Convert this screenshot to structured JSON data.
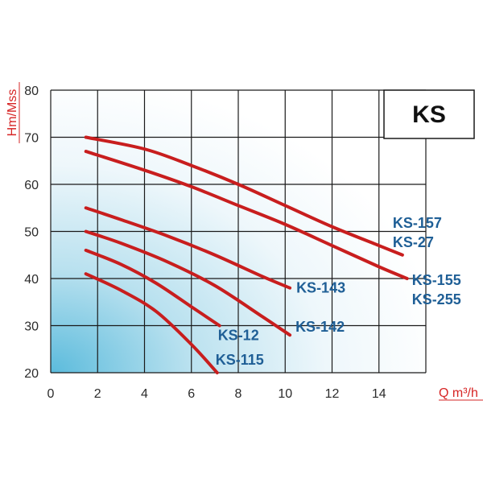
{
  "chart_data": {
    "type": "line",
    "title_box": "KS",
    "xlabel": "Q m³/h",
    "ylabel": "Hm/Mss",
    "xlim": [
      0,
      16
    ],
    "ylim": [
      20,
      80
    ],
    "xticks": [
      0,
      2,
      4,
      6,
      8,
      10,
      12,
      14
    ],
    "yticks": [
      20,
      30,
      40,
      50,
      60,
      70,
      80
    ],
    "grid": true,
    "series": [
      {
        "label": [
          "KS-157",
          "KS-27"
        ],
        "x": [
          1.5,
          4,
          6,
          8,
          10,
          12,
          14,
          15
        ],
        "y": [
          70,
          67.5,
          64,
          60,
          55.5,
          51,
          47,
          45
        ]
      },
      {
        "label": [
          "KS-155",
          "KS-255"
        ],
        "x": [
          1.5,
          4,
          6,
          8,
          10,
          12,
          14,
          15.2
        ],
        "y": [
          67,
          63,
          59.5,
          55.5,
          51.5,
          47,
          42.5,
          40
        ]
      },
      {
        "label": [
          "KS-143"
        ],
        "x": [
          1.5,
          3,
          5,
          7,
          9,
          10.2
        ],
        "y": [
          55,
          52.5,
          49,
          45,
          40.5,
          38
        ]
      },
      {
        "label": [
          "KS-142"
        ],
        "x": [
          1.5,
          3,
          5,
          7,
          9,
          10.2
        ],
        "y": [
          50,
          47.5,
          43.5,
          38.5,
          32,
          28
        ]
      },
      {
        "label": [
          "KS-12"
        ],
        "x": [
          1.5,
          3,
          4.5,
          6,
          7.2
        ],
        "y": [
          46,
          43,
          39,
          34,
          30
        ]
      },
      {
        "label": [
          "KS-115"
        ],
        "x": [
          1.5,
          3,
          4.5,
          6,
          7.1
        ],
        "y": [
          41,
          37.5,
          33,
          26,
          20
        ]
      }
    ]
  },
  "colors": {
    "curve": "#c81e1e",
    "label": "#1f5f96",
    "grid": "#1a1a1a",
    "bg_corner": "#6ec3df"
  }
}
